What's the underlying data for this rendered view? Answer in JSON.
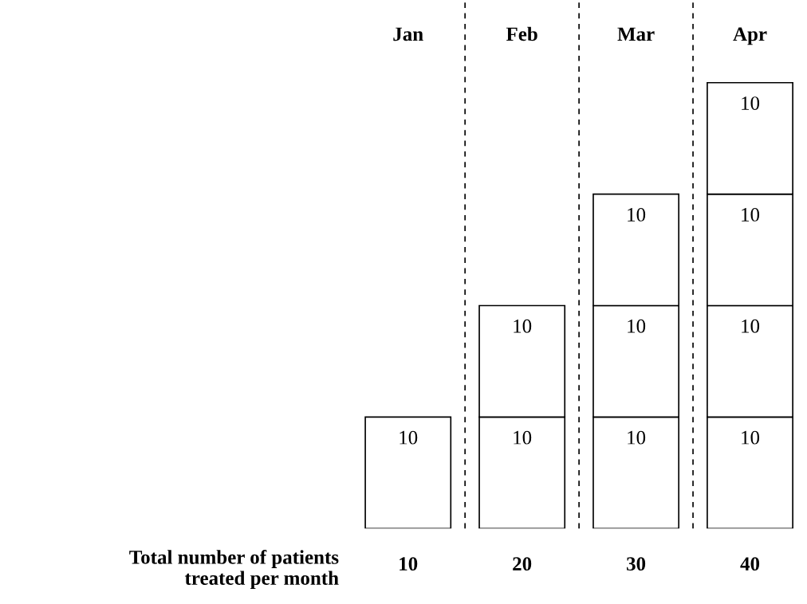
{
  "chart_data": {
    "type": "bar",
    "stacked": true,
    "data_labels": true,
    "categories": [
      "Jan",
      "Feb",
      "Mar",
      "Apr"
    ],
    "series": [
      {
        "color": "#ffffff",
        "values": [
          10,
          10,
          10,
          10
        ]
      },
      {
        "color": "#ffffff",
        "values": [
          null,
          10,
          10,
          10
        ]
      },
      {
        "color": "#ffffff",
        "values": [
          null,
          null,
          10,
          10
        ]
      },
      {
        "color": "#ffffff",
        "values": [
          null,
          null,
          null,
          10
        ]
      }
    ],
    "totals": [
      "10",
      "20",
      "30",
      "40"
    ],
    "annotations": [
      "Total number of patients\ntreated per month"
    ],
    "grid": false,
    "legend": false,
    "tick_labels": "x"
  }
}
